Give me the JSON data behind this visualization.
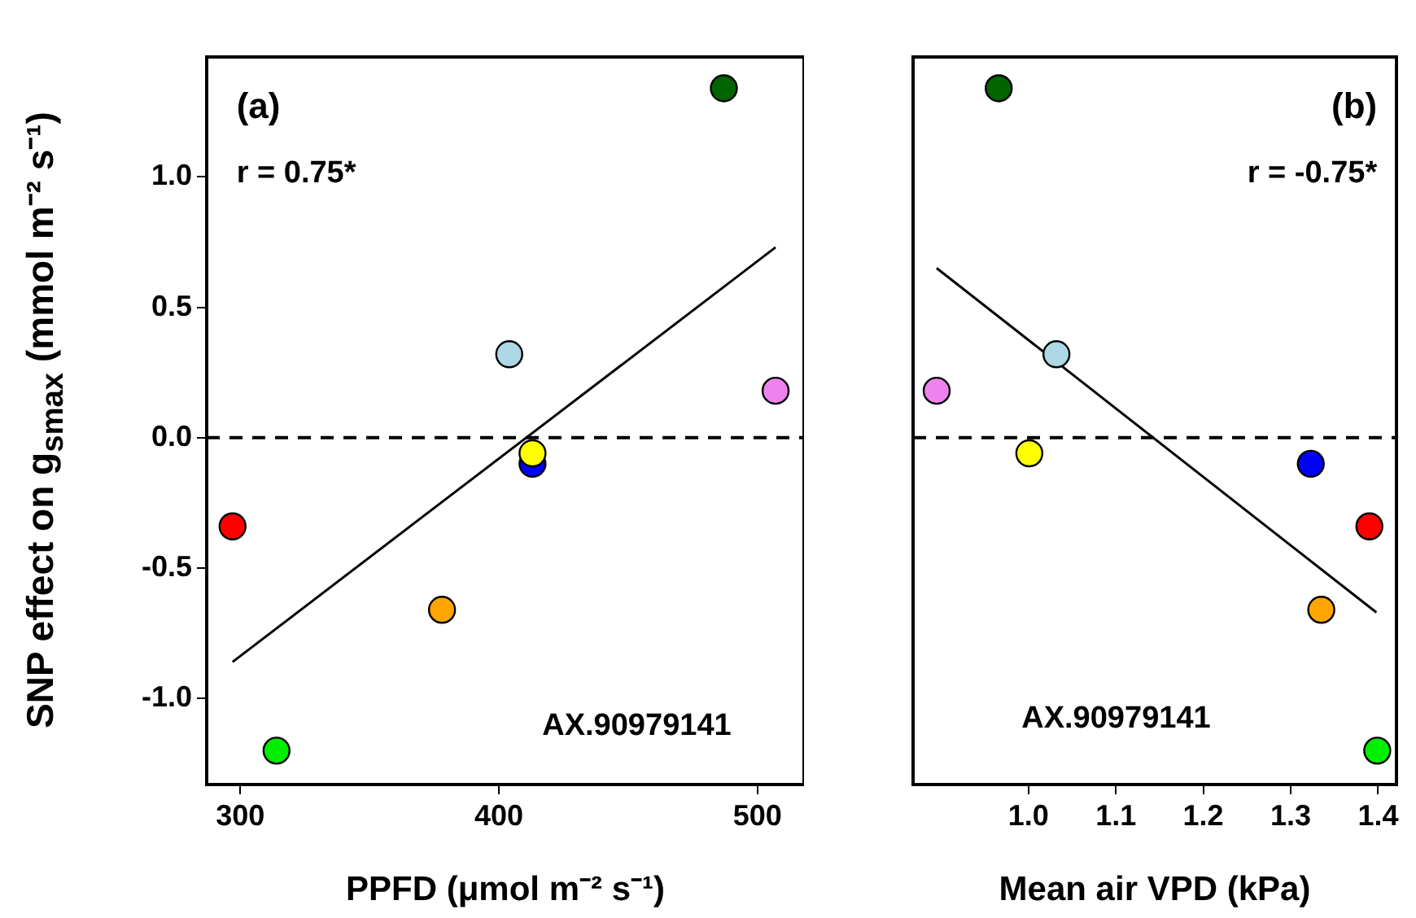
{
  "chart_data": [
    {
      "type": "scatter",
      "xlabel": "PPFD (μmol m⁻² s⁻¹)",
      "ylabel": "SNP effect on g$_{smax}$ (mmol m⁻² s⁻¹)",
      "annotations": [
        "(a)",
        "r = 0.75*",
        "AX.90979141"
      ],
      "xlim": [
        287,
        518
      ],
      "xticks": [
        300,
        400,
        500
      ],
      "ylim": [
        -1.33,
        1.46
      ],
      "yticks": [
        {
          "value": -1.0,
          "label": "-1.0"
        },
        -0.5,
        {
          "value": 0.0,
          "label": "0.0"
        },
        0.5,
        {
          "value": 1.0,
          "label": "1.0"
        }
      ],
      "marker": "circle",
      "ref_lines": [
        {
          "axis": "y",
          "value": 0,
          "line_style": "dashed",
          "color": "#000000"
        }
      ],
      "series": [
        {
          "type": "scatter",
          "x": [
            297,
            314,
            378,
            404,
            413,
            413,
            487,
            507
          ],
          "values": [
            -0.34,
            -1.2,
            -0.66,
            0.32,
            -0.1,
            -0.06,
            1.34,
            0.18
          ],
          "colors": [
            "#ff0000",
            "#00ee00",
            "#ffa500",
            "#add8e6",
            "#0000ff",
            "#ffff00",
            "#006400",
            "#ee82ee"
          ]
        },
        {
          "type": "line",
          "x": [
            297,
            507
          ],
          "values": [
            -0.86,
            0.73
          ],
          "color": "#000000",
          "marker": "none"
        }
      ]
    },
    {
      "type": "scatter",
      "xlabel": "Mean air VPD (kPa)",
      "annotations": [
        "(b)",
        "r = -0.75*",
        "AX.90979141"
      ],
      "xlim": [
        0.868,
        1.421
      ],
      "xticks": [
        {
          "value": 1.0,
          "label": "1.0"
        },
        1.1,
        1.2,
        1.3,
        1.4
      ],
      "ylim": [
        -1.33,
        1.46
      ],
      "yticks": [
        -1.0,
        -0.5,
        0.0,
        0.5,
        1.0
      ],
      "tick_labels": "x",
      "marker": "circle",
      "ref_lines": [
        {
          "axis": "y",
          "value": 0,
          "line_style": "dashed",
          "color": "#000000"
        }
      ],
      "series": [
        {
          "type": "scatter",
          "x": [
            1.39,
            1.399,
            1.335,
            1.032,
            1.323,
            1.001,
            0.966,
            0.895
          ],
          "values": [
            -0.34,
            -1.2,
            -0.66,
            0.32,
            -0.1,
            -0.06,
            1.34,
            0.18
          ],
          "colors": [
            "#ff0000",
            "#00ee00",
            "#ffa500",
            "#add8e6",
            "#0000ff",
            "#ffff00",
            "#006400",
            "#ee82ee"
          ]
        },
        {
          "type": "line",
          "x": [
            0.895,
            1.398
          ],
          "values": [
            0.65,
            -0.67
          ],
          "color": "#000000",
          "marker": "none"
        }
      ]
    }
  ]
}
